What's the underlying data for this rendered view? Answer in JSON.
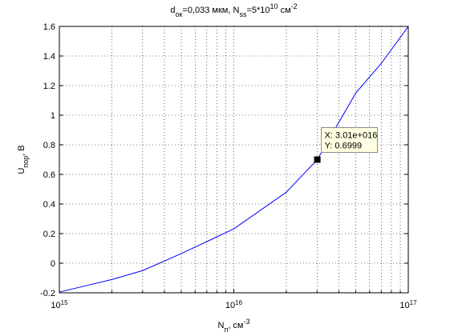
{
  "chart_data": {
    "type": "line",
    "log_x": true,
    "grid": true,
    "minor_grid": true,
    "title_parts": [
      {
        "text": "d"
      },
      {
        "text": "ок",
        "style": "sub"
      },
      {
        "text": "=0,033 мкм, N"
      },
      {
        "text": "ss",
        "style": "sub"
      },
      {
        "text": "=5*10"
      },
      {
        "text": "10",
        "style": "sup"
      },
      {
        "text": " см"
      },
      {
        "text": "-2",
        "style": "sup"
      }
    ],
    "xlabel_parts": [
      {
        "text": "N"
      },
      {
        "text": "п",
        "style": "sub"
      },
      {
        "text": ", см"
      },
      {
        "text": "-3",
        "style": "sup"
      }
    ],
    "ylabel_parts": [
      {
        "text": "U"
      },
      {
        "text": "пор",
        "style": "sub"
      },
      {
        "text": ", В"
      }
    ],
    "x": [
      1000000000000000.0,
      2000000000000000.0,
      3000000000000000.0,
      5000000000000000.0,
      7000000000000000.0,
      1e+16,
      2e+16,
      3.01e+16,
      5e+16,
      7e+16,
      1e+17
    ],
    "series": [
      {
        "color": "#0000ff",
        "values": [
          -0.195,
          -0.11,
          -0.05,
          0.065,
          0.146,
          0.232,
          0.48,
          0.6999,
          1.15,
          1.35,
          1.6
        ]
      }
    ],
    "xlim": [
      1000000000000000.0,
      1e+17
    ],
    "xticks": [
      {
        "value": 1000000000000000.0,
        "label": "10",
        "exponent": "15"
      },
      {
        "value": 1e+16,
        "label": "10",
        "exponent": "16"
      },
      {
        "value": 1e+17,
        "label": "10",
        "exponent": "17"
      }
    ],
    "xminorticks": [
      2000000000000000.0,
      3000000000000000.0,
      4000000000000000.0,
      5000000000000000.0,
      6000000000000000.0,
      7000000000000000.0,
      8000000000000000.0,
      9000000000000000.0,
      2e+16,
      3e+16,
      4e+16,
      5e+16,
      6e+16,
      7e+16,
      8e+16,
      9e+16
    ],
    "ylim": [
      -0.2,
      1.6
    ],
    "yticks": [
      -0.2,
      0,
      0.2,
      0.4,
      0.6,
      0.8,
      1,
      1.2,
      1.4,
      1.6
    ],
    "datatip": {
      "x": 3.01e+16,
      "y": 0.6999,
      "x_label": "X: 3.01e+016",
      "y_label": "Y: 0.6999"
    }
  }
}
